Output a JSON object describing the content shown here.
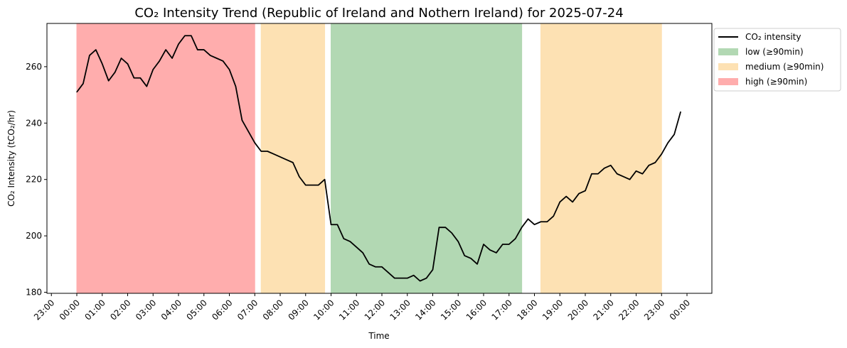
{
  "chart_data": {
    "type": "line",
    "title": "CO₂ Intensity Trend (Republic of Ireland and Nothern Ireland) for 2025-07-24",
    "xlabel": "Time",
    "ylabel": "CO₂ Intensity (tCO₂/hr)",
    "xlim": [
      "23:00",
      "00:00"
    ],
    "ylim": [
      180,
      275
    ],
    "y_ticks": [
      180,
      200,
      220,
      240,
      260
    ],
    "x_ticks": [
      "23:00",
      "00:00",
      "01:00",
      "02:00",
      "03:00",
      "04:00",
      "05:00",
      "06:00",
      "07:00",
      "08:00",
      "09:00",
      "10:00",
      "11:00",
      "12:00",
      "13:00",
      "14:00",
      "15:00",
      "16:00",
      "17:00",
      "18:00",
      "19:00",
      "20:00",
      "21:00",
      "22:00",
      "23:00",
      "00:00"
    ],
    "grid": false,
    "legend_position": "outside-top-right",
    "series": [
      {
        "name": "CO₂ intensity",
        "color": "#000000",
        "x": [
          "00:00",
          "00:15",
          "00:30",
          "00:45",
          "01:00",
          "01:15",
          "01:30",
          "01:45",
          "02:00",
          "02:15",
          "02:30",
          "02:45",
          "03:00",
          "03:15",
          "03:30",
          "03:45",
          "04:00",
          "04:15",
          "04:30",
          "04:45",
          "05:00",
          "05:15",
          "05:30",
          "05:45",
          "06:00",
          "06:15",
          "06:30",
          "06:45",
          "07:00",
          "07:15",
          "07:30",
          "07:45",
          "08:00",
          "08:15",
          "08:30",
          "08:45",
          "09:00",
          "09:15",
          "09:30",
          "09:45",
          "10:00",
          "10:15",
          "10:30",
          "10:45",
          "11:00",
          "11:15",
          "11:30",
          "11:45",
          "12:00",
          "12:15",
          "12:30",
          "12:45",
          "13:00",
          "13:15",
          "13:30",
          "13:45",
          "14:00",
          "14:15",
          "14:30",
          "14:45",
          "15:00",
          "15:15",
          "15:30",
          "15:45",
          "16:00",
          "16:15",
          "16:30",
          "16:45",
          "17:00",
          "17:15",
          "17:30",
          "17:45",
          "18:00",
          "18:15",
          "18:30",
          "18:45",
          "19:00",
          "19:15",
          "19:30",
          "19:45",
          "20:00",
          "20:15",
          "20:30",
          "20:45",
          "21:00",
          "21:15",
          "21:30",
          "21:45",
          "22:00",
          "22:15",
          "22:30",
          "22:45",
          "23:00",
          "23:15",
          "23:30",
          "23:45"
        ],
        "values": [
          251,
          254,
          264,
          266,
          261,
          255,
          258,
          263,
          261,
          256,
          256,
          253,
          259,
          262,
          266,
          263,
          268,
          271,
          271,
          266,
          266,
          264,
          263,
          262,
          259,
          253,
          241,
          237,
          233,
          230,
          230,
          229,
          228,
          227,
          226,
          221,
          218,
          218,
          218,
          220,
          204,
          204,
          199,
          198,
          196,
          194,
          190,
          189,
          189,
          187,
          185,
          185,
          185,
          186,
          184,
          185,
          188,
          203,
          203,
          201,
          198,
          193,
          192,
          190,
          197,
          195,
          194,
          197,
          197,
          199,
          203,
          206,
          204,
          205,
          205,
          207,
          212,
          214,
          212,
          215,
          216,
          222,
          222,
          224,
          225,
          222,
          221,
          220,
          223,
          222,
          225,
          226,
          229,
          233,
          236,
          244
        ]
      }
    ],
    "bands": [
      {
        "label": "high (≥90min)",
        "start": "00:00",
        "end": "07:00",
        "color": "#ffadad"
      },
      {
        "label": "medium (≥90min)",
        "start": "07:15",
        "end": "09:45",
        "color": "#fde1b3"
      },
      {
        "label": "low (≥90min)",
        "start": "10:00",
        "end": "17:30",
        "color": "#b2d8b3"
      },
      {
        "label": "medium (≥90min)",
        "start": "18:15",
        "end": "23:00",
        "color": "#fde1b3"
      }
    ],
    "legend": [
      {
        "label": "CO₂ intensity",
        "kind": "line",
        "color": "#000000"
      },
      {
        "label": "low (≥90min)",
        "kind": "patch",
        "color": "#b2d8b3"
      },
      {
        "label": "medium (≥90min)",
        "kind": "patch",
        "color": "#fde1b3"
      },
      {
        "label": "high (≥90min)",
        "kind": "patch",
        "color": "#ffadad"
      }
    ]
  }
}
